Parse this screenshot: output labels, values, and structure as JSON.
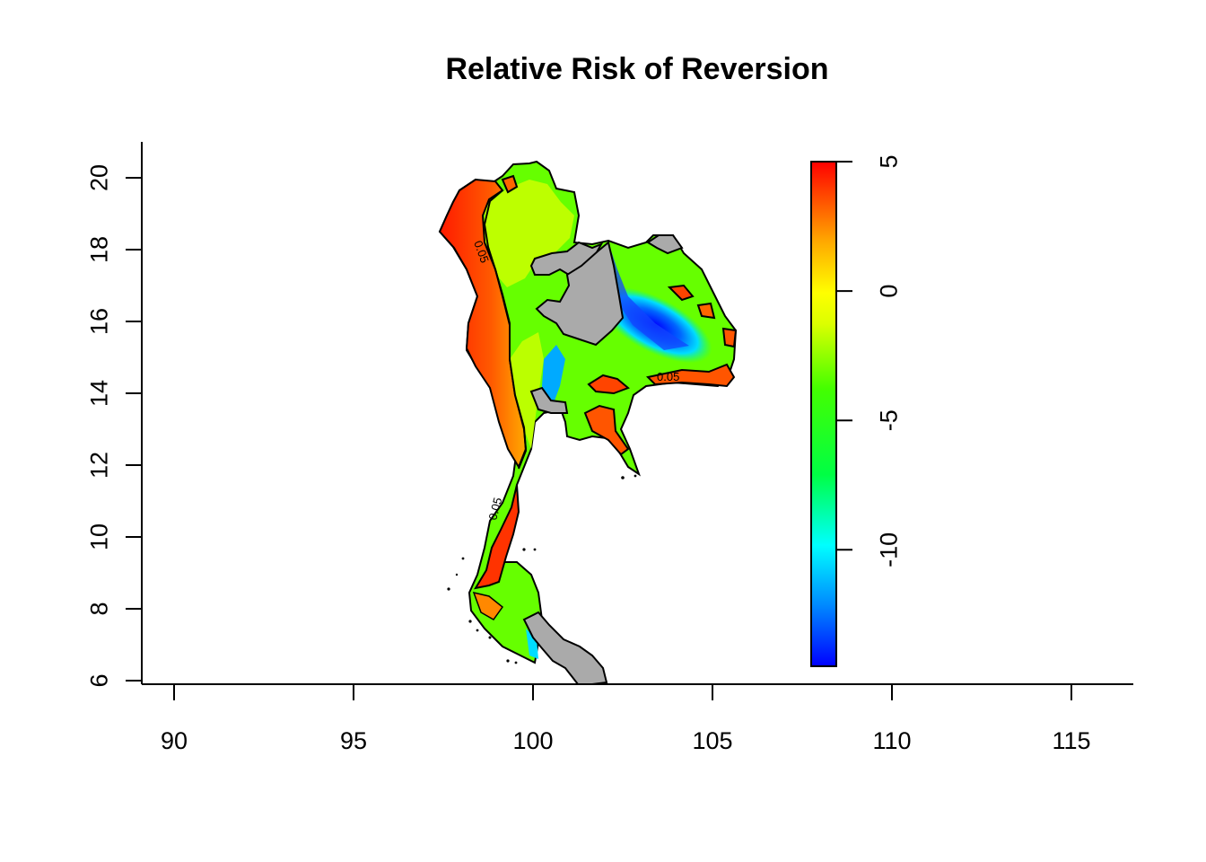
{
  "title": "Relative Risk of Reversion",
  "x_axis": {
    "ticks": [
      "90",
      "95",
      "100",
      "105",
      "110",
      "115"
    ]
  },
  "y_axis": {
    "ticks": [
      "6",
      "8",
      "10",
      "12",
      "14",
      "16",
      "18",
      "20"
    ]
  },
  "legend": {
    "ticks": [
      "5",
      "0",
      "-5",
      "-10"
    ],
    "range": [
      -14.5,
      5
    ],
    "colors": [
      "#0000ff",
      "#0088ff",
      "#00ffff",
      "#00ff44",
      "#44ff00",
      "#ddff00",
      "#ffff00",
      "#ffaa00",
      "#ff5500",
      "#ff0000"
    ]
  },
  "contour_label": "0.05",
  "colors": {
    "masked": "#aaaaaa",
    "outline": "#000000"
  }
}
